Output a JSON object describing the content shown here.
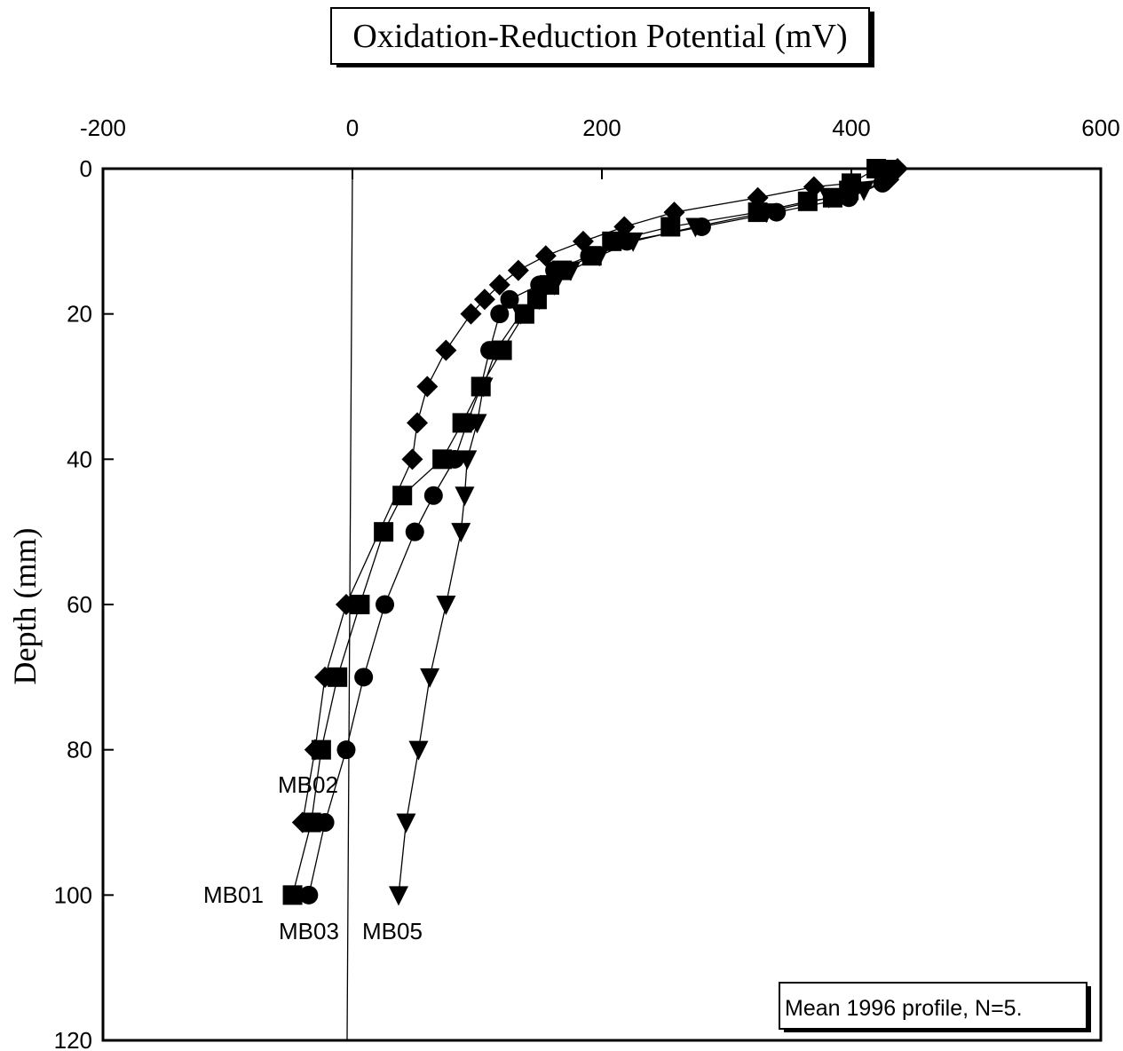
{
  "chart_data": {
    "type": "scatter",
    "title": "Oxidation-Reduction Potential (mV)",
    "xlabel": "Oxidation-Reduction Potential (mV)",
    "ylabel": "Depth (mm)",
    "xlim": [
      -200,
      600
    ],
    "ylim": [
      0,
      120
    ],
    "y_inverted": true,
    "x_axis_position": "top",
    "x_ticks": [
      -200,
      0,
      200,
      400,
      600
    ],
    "y_ticks": [
      0,
      20,
      40,
      60,
      80,
      100,
      120
    ],
    "x_tick_labels": [
      "-200",
      "0",
      "200",
      "400",
      "600"
    ],
    "y_tick_labels": [
      "0",
      "20",
      "40",
      "60",
      "80",
      "100",
      "120"
    ],
    "reference_line_x": 0,
    "annotation": "Mean 1996 profile, N=5.",
    "series": [
      {
        "name": "MB01",
        "marker": "square",
        "points": [
          [
            420,
            0
          ],
          [
            400,
            2
          ],
          [
            398,
            3
          ],
          [
            385,
            4
          ],
          [
            365,
            4.5
          ],
          [
            325,
            6
          ],
          [
            255,
            8
          ],
          [
            208,
            10
          ],
          [
            192,
            12
          ],
          [
            168,
            14
          ],
          [
            158,
            16
          ],
          [
            148,
            18
          ],
          [
            138,
            20
          ],
          [
            120,
            25
          ],
          [
            103,
            30
          ],
          [
            88,
            35
          ],
          [
            72,
            40
          ],
          [
            40,
            45
          ],
          [
            25,
            50
          ],
          [
            6,
            60
          ],
          [
            -12,
            70
          ],
          [
            -25,
            80
          ],
          [
            -33,
            90
          ],
          [
            -48,
            100
          ]
        ]
      },
      {
        "name": "MB02",
        "marker": "diamond",
        "points": [
          [
            437,
            0
          ],
          [
            430,
            1.5
          ],
          [
            370,
            2.5
          ],
          [
            325,
            4
          ],
          [
            258,
            6
          ],
          [
            218,
            8
          ],
          [
            185,
            10
          ],
          [
            155,
            12
          ],
          [
            133,
            14
          ],
          [
            118,
            16
          ],
          [
            106,
            18
          ],
          [
            95,
            20
          ],
          [
            75,
            25
          ],
          [
            60,
            30
          ],
          [
            52,
            35
          ],
          [
            48,
            40
          ],
          [
            -5,
            60
          ],
          [
            -22,
            70
          ],
          [
            -30,
            80
          ],
          [
            -40,
            90
          ]
        ]
      },
      {
        "name": "MB03",
        "marker": "circle",
        "points": [
          [
            432,
            0.5
          ],
          [
            425,
            2
          ],
          [
            398,
            4
          ],
          [
            340,
            6
          ],
          [
            280,
            8
          ],
          [
            220,
            10
          ],
          [
            190,
            12
          ],
          [
            162,
            14
          ],
          [
            150,
            16
          ],
          [
            126,
            18
          ],
          [
            118,
            20
          ],
          [
            110,
            25
          ],
          [
            103,
            30
          ],
          [
            92,
            35
          ],
          [
            82,
            40
          ],
          [
            65,
            45
          ],
          [
            50,
            50
          ],
          [
            26,
            60
          ],
          [
            9,
            70
          ],
          [
            -5,
            80
          ],
          [
            -22,
            90
          ],
          [
            -35,
            100
          ]
        ]
      },
      {
        "name": "MB05",
        "marker": "triangle-down",
        "points": [
          [
            428,
            0
          ],
          [
            428,
            1.5
          ],
          [
            410,
            3
          ],
          [
            382,
            4
          ],
          [
            332,
            6
          ],
          [
            275,
            8
          ],
          [
            225,
            10
          ],
          [
            198,
            12
          ],
          [
            175,
            14
          ],
          [
            162,
            16
          ],
          [
            150,
            18
          ],
          [
            135,
            20
          ],
          [
            115,
            25
          ],
          [
            105,
            30
          ],
          [
            100,
            35
          ],
          [
            92,
            40
          ],
          [
            90,
            45
          ],
          [
            87,
            50
          ],
          [
            75,
            60
          ],
          [
            62,
            70
          ],
          [
            53,
            80
          ],
          [
            43,
            90
          ],
          [
            37,
            100
          ]
        ]
      }
    ]
  }
}
